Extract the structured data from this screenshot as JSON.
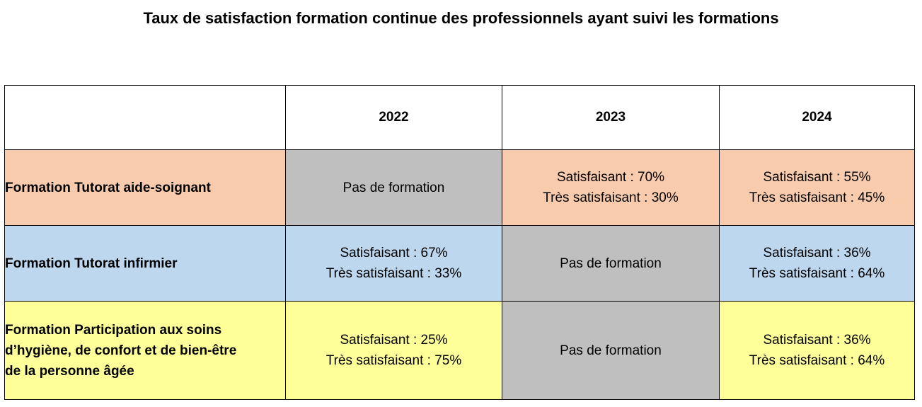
{
  "title": "Taux de satisfaction formation continue des professionnels ayant suivi les formations",
  "colors": {
    "row_tutorat_aide_soignant": "#f8cbad",
    "row_tutorat_infirmier": "#bdd7ee",
    "row_participation_soins": "#ffff99",
    "no_training": "#bfbfbf",
    "border": "#000000"
  },
  "table": {
    "headers": [
      "",
      "2022",
      "2023",
      "2024"
    ],
    "rows": [
      {
        "label": "Formation Tutorat aide-soignant",
        "cells": [
          {
            "none": "Pas de formation"
          },
          {
            "satisfied": "Satisfaisant : 70%",
            "very_satisfied": "Très satisfaisant : 30%"
          },
          {
            "satisfied": "Satisfaisant : 55%",
            "very_satisfied": "Très satisfaisant : 45%"
          }
        ]
      },
      {
        "label": "Formation Tutorat infirmier",
        "cells": [
          {
            "satisfied": "Satisfaisant : 67%",
            "very_satisfied": "Très satisfaisant : 33%"
          },
          {
            "none": "Pas de formation"
          },
          {
            "satisfied": "Satisfaisant : 36%",
            "very_satisfied": "Très satisfaisant : 64%"
          }
        ]
      },
      {
        "label_lines": [
          "Formation Participation aux soins",
          "d’hygiène, de confort et de bien-être",
          "de la personne âgée"
        ],
        "cells": [
          {
            "satisfied": "Satisfaisant : 25%",
            "very_satisfied": "Très satisfaisant : 75%"
          },
          {
            "none": "Pas de formation"
          },
          {
            "satisfied": "Satisfaisant : 36%",
            "very_satisfied": "Très satisfaisant : 64%"
          }
        ]
      }
    ]
  }
}
